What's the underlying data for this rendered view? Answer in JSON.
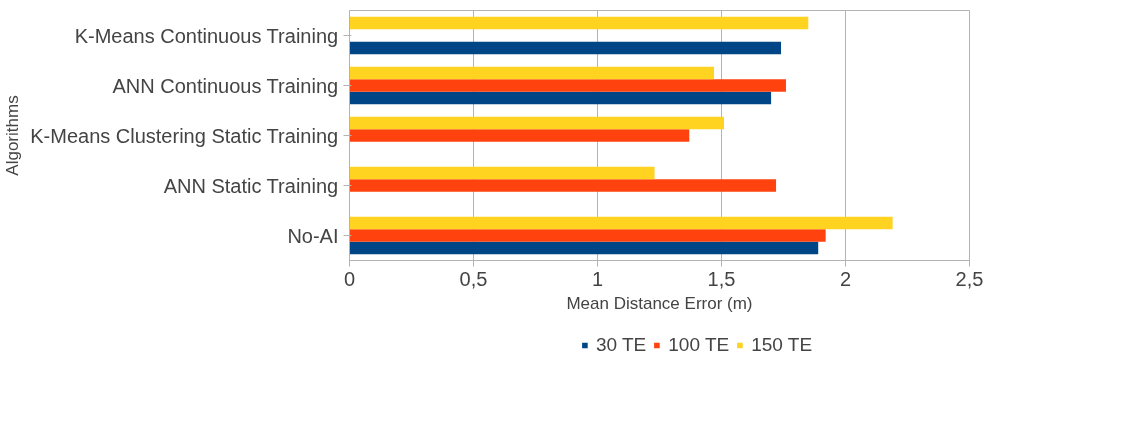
{
  "chart_data": {
    "type": "bar",
    "orientation": "horizontal",
    "xlabel": "Mean Distance Error (m)",
    "ylabel": "Algorithms",
    "categories": [
      "K-Means Continuous Training",
      "ANN Continuous Training",
      "K-Means Clustering Static Training",
      "ANN Static Training",
      "No-AI"
    ],
    "series": [
      {
        "name": "30 TE",
        "color": "#004586",
        "values": [
          1.74,
          1.7,
          null,
          null,
          1.89
        ]
      },
      {
        "name": "100 TE",
        "color": "#ff420e",
        "values": [
          null,
          1.76,
          1.37,
          1.72,
          1.92
        ]
      },
      {
        "name": "150 TE",
        "color": "#ffd320",
        "values": [
          1.85,
          1.47,
          1.51,
          1.23,
          2.19
        ]
      }
    ],
    "xlim": [
      0,
      2.5
    ],
    "xticks": [
      0,
      {
        "value": 0.5,
        "label": "0,5"
      },
      1,
      {
        "value": 1.5,
        "label": "1,5"
      },
      2,
      {
        "value": 2.5,
        "label": "2,5"
      }
    ],
    "grid": "x",
    "legend": "bottom"
  }
}
